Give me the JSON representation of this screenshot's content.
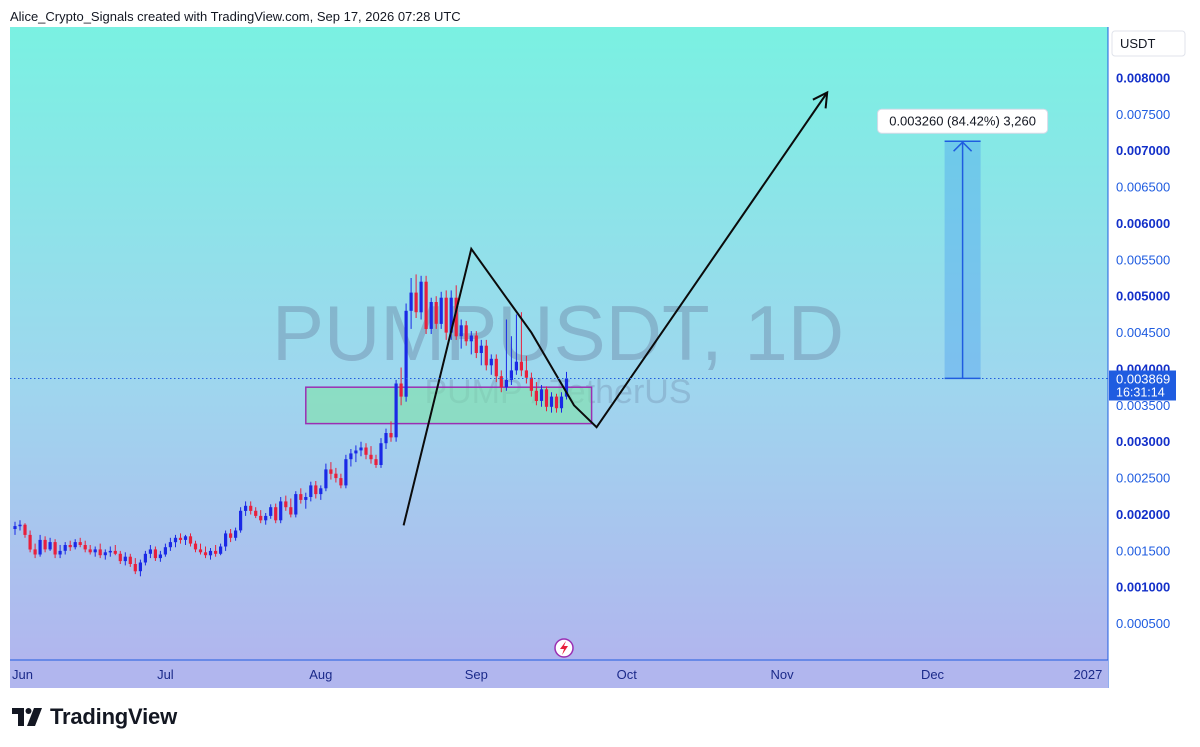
{
  "header": {
    "text": "Alice_Crypto_Signals created with TradingView.com, Sep 17, 2026 07:28 UTC"
  },
  "brand": {
    "name": "TradingView"
  },
  "colors": {
    "up": "#1a29e6",
    "down": "#e8203c",
    "accent": "#1f5ce0",
    "box_border": "#9b2fb3",
    "box_fill": "#7fe3a8"
  },
  "icons": {
    "logo": "tradingview-logo-icon",
    "flash": "lightning-icon"
  },
  "chart_data": {
    "type": "candlestick",
    "symbol_watermark": "PUMPUSDT, 1D",
    "symbol_subtitle": "PUMP / TetherUS",
    "currency": "USDT",
    "last_price": "0.003869",
    "countdown": "16:31:14",
    "measure_label": "0.003260 (84.42%) 3,260",
    "ylim": [
      0,
      0.0087
    ],
    "y_ticks": [
      {
        "label": "0.008000",
        "value": 0.008,
        "bold": true
      },
      {
        "label": "0.007500",
        "value": 0.0075,
        "bold": false
      },
      {
        "label": "0.007000",
        "value": 0.007,
        "bold": true
      },
      {
        "label": "0.006500",
        "value": 0.0065,
        "bold": false
      },
      {
        "label": "0.006000",
        "value": 0.006,
        "bold": true
      },
      {
        "label": "0.005500",
        "value": 0.0055,
        "bold": false
      },
      {
        "label": "0.005000",
        "value": 0.005,
        "bold": true
      },
      {
        "label": "0.004500",
        "value": 0.0045,
        "bold": false
      },
      {
        "label": "0.004000",
        "value": 0.004,
        "bold": true
      },
      {
        "label": "0.003500",
        "value": 0.0035,
        "bold": false
      },
      {
        "label": "0.003000",
        "value": 0.003,
        "bold": true
      },
      {
        "label": "0.002500",
        "value": 0.0025,
        "bold": false
      },
      {
        "label": "0.002000",
        "value": 0.002,
        "bold": true
      },
      {
        "label": "0.001500",
        "value": 0.0015,
        "bold": false
      },
      {
        "label": "0.001000",
        "value": 0.001,
        "bold": true
      },
      {
        "label": "0.000500",
        "value": 0.0005,
        "bold": false
      }
    ],
    "x_ticks": [
      {
        "label": "Jun",
        "day": 0
      },
      {
        "label": "Jul",
        "day": 30
      },
      {
        "label": "Aug",
        "day": 61
      },
      {
        "label": "Sep",
        "day": 92
      },
      {
        "label": "Oct",
        "day": 122
      },
      {
        "label": "Nov",
        "day": 153
      },
      {
        "label": "Dec",
        "day": 183
      },
      {
        "label": "2027",
        "day": 214
      }
    ],
    "x_range_days": [
      -1,
      218
    ],
    "candles": [
      {
        "d": 0,
        "o": 0.0018,
        "h": 0.0019,
        "l": 0.00172,
        "c": 0.00184
      },
      {
        "d": 1,
        "o": 0.00184,
        "h": 0.00192,
        "l": 0.00178,
        "c": 0.00186
      },
      {
        "d": 2,
        "o": 0.00186,
        "h": 0.00188,
        "l": 0.00168,
        "c": 0.00172
      },
      {
        "d": 3,
        "o": 0.00172,
        "h": 0.00178,
        "l": 0.00148,
        "c": 0.00152
      },
      {
        "d": 4,
        "o": 0.00152,
        "h": 0.0016,
        "l": 0.0014,
        "c": 0.00145
      },
      {
        "d": 5,
        "o": 0.00145,
        "h": 0.00172,
        "l": 0.00142,
        "c": 0.00165
      },
      {
        "d": 6,
        "o": 0.00165,
        "h": 0.0017,
        "l": 0.00148,
        "c": 0.00152
      },
      {
        "d": 7,
        "o": 0.00152,
        "h": 0.00168,
        "l": 0.0015,
        "c": 0.00162
      },
      {
        "d": 8,
        "o": 0.00162,
        "h": 0.00166,
        "l": 0.0014,
        "c": 0.00145
      },
      {
        "d": 9,
        "o": 0.00145,
        "h": 0.00158,
        "l": 0.0014,
        "c": 0.0015
      },
      {
        "d": 10,
        "o": 0.0015,
        "h": 0.00162,
        "l": 0.00145,
        "c": 0.00158
      },
      {
        "d": 11,
        "o": 0.00158,
        "h": 0.00164,
        "l": 0.0015,
        "c": 0.00155
      },
      {
        "d": 12,
        "o": 0.00155,
        "h": 0.00166,
        "l": 0.00152,
        "c": 0.00162
      },
      {
        "d": 13,
        "o": 0.00162,
        "h": 0.00168,
        "l": 0.00155,
        "c": 0.00158
      },
      {
        "d": 14,
        "o": 0.00158,
        "h": 0.00164,
        "l": 0.00148,
        "c": 0.00152
      },
      {
        "d": 15,
        "o": 0.00152,
        "h": 0.00158,
        "l": 0.00145,
        "c": 0.00148
      },
      {
        "d": 16,
        "o": 0.00148,
        "h": 0.00156,
        "l": 0.00142,
        "c": 0.00152
      },
      {
        "d": 17,
        "o": 0.00152,
        "h": 0.0016,
        "l": 0.0014,
        "c": 0.00144
      },
      {
        "d": 18,
        "o": 0.00144,
        "h": 0.00152,
        "l": 0.00138,
        "c": 0.00148
      },
      {
        "d": 19,
        "o": 0.00148,
        "h": 0.00156,
        "l": 0.00142,
        "c": 0.0015
      },
      {
        "d": 20,
        "o": 0.0015,
        "h": 0.00158,
        "l": 0.00144,
        "c": 0.00146
      },
      {
        "d": 21,
        "o": 0.00146,
        "h": 0.0015,
        "l": 0.00132,
        "c": 0.00136
      },
      {
        "d": 22,
        "o": 0.00136,
        "h": 0.00148,
        "l": 0.0013,
        "c": 0.00142
      },
      {
        "d": 23,
        "o": 0.00142,
        "h": 0.00146,
        "l": 0.00128,
        "c": 0.00132
      },
      {
        "d": 24,
        "o": 0.00132,
        "h": 0.0014,
        "l": 0.00118,
        "c": 0.00122
      },
      {
        "d": 25,
        "o": 0.00122,
        "h": 0.00138,
        "l": 0.00115,
        "c": 0.00134
      },
      {
        "d": 26,
        "o": 0.00134,
        "h": 0.0015,
        "l": 0.0013,
        "c": 0.00146
      },
      {
        "d": 27,
        "o": 0.00146,
        "h": 0.00158,
        "l": 0.0014,
        "c": 0.00152
      },
      {
        "d": 28,
        "o": 0.00152,
        "h": 0.00156,
        "l": 0.00136,
        "c": 0.0014
      },
      {
        "d": 29,
        "o": 0.0014,
        "h": 0.0015,
        "l": 0.00135,
        "c": 0.00145
      },
      {
        "d": 30,
        "o": 0.00145,
        "h": 0.0016,
        "l": 0.00142,
        "c": 0.00155
      },
      {
        "d": 31,
        "o": 0.00155,
        "h": 0.00168,
        "l": 0.0015,
        "c": 0.00162
      },
      {
        "d": 32,
        "o": 0.00162,
        "h": 0.00172,
        "l": 0.00155,
        "c": 0.00168
      },
      {
        "d": 33,
        "o": 0.00168,
        "h": 0.00174,
        "l": 0.0016,
        "c": 0.00165
      },
      {
        "d": 34,
        "o": 0.00165,
        "h": 0.00172,
        "l": 0.00158,
        "c": 0.0017
      },
      {
        "d": 35,
        "o": 0.0017,
        "h": 0.00174,
        "l": 0.00156,
        "c": 0.0016
      },
      {
        "d": 36,
        "o": 0.0016,
        "h": 0.00164,
        "l": 0.00148,
        "c": 0.00152
      },
      {
        "d": 37,
        "o": 0.00152,
        "h": 0.0016,
        "l": 0.00145,
        "c": 0.00148
      },
      {
        "d": 38,
        "o": 0.00148,
        "h": 0.00156,
        "l": 0.0014,
        "c": 0.00144
      },
      {
        "d": 39,
        "o": 0.00144,
        "h": 0.00154,
        "l": 0.00138,
        "c": 0.0015
      },
      {
        "d": 40,
        "o": 0.0015,
        "h": 0.00158,
        "l": 0.00142,
        "c": 0.00146
      },
      {
        "d": 41,
        "o": 0.00146,
        "h": 0.0016,
        "l": 0.00144,
        "c": 0.00156
      },
      {
        "d": 42,
        "o": 0.00156,
        "h": 0.00178,
        "l": 0.0015,
        "c": 0.00174
      },
      {
        "d": 43,
        "o": 0.00174,
        "h": 0.0018,
        "l": 0.00162,
        "c": 0.00168
      },
      {
        "d": 44,
        "o": 0.00168,
        "h": 0.00182,
        "l": 0.00164,
        "c": 0.00178
      },
      {
        "d": 45,
        "o": 0.00178,
        "h": 0.0021,
        "l": 0.00175,
        "c": 0.00205
      },
      {
        "d": 46,
        "o": 0.00205,
        "h": 0.00218,
        "l": 0.00198,
        "c": 0.00212
      },
      {
        "d": 47,
        "o": 0.00212,
        "h": 0.00218,
        "l": 0.002,
        "c": 0.00205
      },
      {
        "d": 48,
        "o": 0.00205,
        "h": 0.0021,
        "l": 0.00195,
        "c": 0.00198
      },
      {
        "d": 49,
        "o": 0.00198,
        "h": 0.00206,
        "l": 0.00188,
        "c": 0.00192
      },
      {
        "d": 50,
        "o": 0.00192,
        "h": 0.00202,
        "l": 0.00186,
        "c": 0.00198
      },
      {
        "d": 51,
        "o": 0.00198,
        "h": 0.00214,
        "l": 0.00194,
        "c": 0.0021
      },
      {
        "d": 52,
        "o": 0.0021,
        "h": 0.00215,
        "l": 0.00188,
        "c": 0.00192
      },
      {
        "d": 53,
        "o": 0.00192,
        "h": 0.00224,
        "l": 0.00188,
        "c": 0.00218
      },
      {
        "d": 54,
        "o": 0.00218,
        "h": 0.00226,
        "l": 0.00205,
        "c": 0.0021
      },
      {
        "d": 55,
        "o": 0.0021,
        "h": 0.00222,
        "l": 0.00196,
        "c": 0.002
      },
      {
        "d": 56,
        "o": 0.002,
        "h": 0.00232,
        "l": 0.00196,
        "c": 0.00228
      },
      {
        "d": 57,
        "o": 0.00228,
        "h": 0.00236,
        "l": 0.00215,
        "c": 0.0022
      },
      {
        "d": 58,
        "o": 0.0022,
        "h": 0.0023,
        "l": 0.00208,
        "c": 0.00224
      },
      {
        "d": 59,
        "o": 0.00224,
        "h": 0.00245,
        "l": 0.00218,
        "c": 0.0024
      },
      {
        "d": 60,
        "o": 0.0024,
        "h": 0.00246,
        "l": 0.00222,
        "c": 0.00228
      },
      {
        "d": 61,
        "o": 0.00228,
        "h": 0.0024,
        "l": 0.0022,
        "c": 0.00236
      },
      {
        "d": 62,
        "o": 0.00236,
        "h": 0.0027,
        "l": 0.00232,
        "c": 0.00262
      },
      {
        "d": 63,
        "o": 0.00262,
        "h": 0.00272,
        "l": 0.00248,
        "c": 0.00256
      },
      {
        "d": 64,
        "o": 0.00256,
        "h": 0.00264,
        "l": 0.00244,
        "c": 0.0025
      },
      {
        "d": 65,
        "o": 0.0025,
        "h": 0.00256,
        "l": 0.00236,
        "c": 0.0024
      },
      {
        "d": 66,
        "o": 0.0024,
        "h": 0.00282,
        "l": 0.00236,
        "c": 0.00276
      },
      {
        "d": 67,
        "o": 0.00276,
        "h": 0.0029,
        "l": 0.00266,
        "c": 0.00284
      },
      {
        "d": 68,
        "o": 0.00284,
        "h": 0.00295,
        "l": 0.00272,
        "c": 0.00288
      },
      {
        "d": 69,
        "o": 0.00288,
        "h": 0.003,
        "l": 0.0028,
        "c": 0.00292
      },
      {
        "d": 70,
        "o": 0.00292,
        "h": 0.00298,
        "l": 0.00276,
        "c": 0.00282
      },
      {
        "d": 71,
        "o": 0.00282,
        "h": 0.00294,
        "l": 0.0027,
        "c": 0.00276
      },
      {
        "d": 72,
        "o": 0.00276,
        "h": 0.00282,
        "l": 0.00264,
        "c": 0.00268
      },
      {
        "d": 73,
        "o": 0.00268,
        "h": 0.00305,
        "l": 0.00264,
        "c": 0.00298
      },
      {
        "d": 74,
        "o": 0.00298,
        "h": 0.00318,
        "l": 0.0029,
        "c": 0.00312
      },
      {
        "d": 75,
        "o": 0.00312,
        "h": 0.00328,
        "l": 0.003,
        "c": 0.00306
      },
      {
        "d": 76,
        "o": 0.00306,
        "h": 0.00385,
        "l": 0.003,
        "c": 0.0038
      },
      {
        "d": 77,
        "o": 0.0038,
        "h": 0.00402,
        "l": 0.0035,
        "c": 0.00362
      },
      {
        "d": 78,
        "o": 0.00362,
        "h": 0.0049,
        "l": 0.00355,
        "c": 0.0048
      },
      {
        "d": 79,
        "o": 0.0048,
        "h": 0.00525,
        "l": 0.00455,
        "c": 0.00505
      },
      {
        "d": 80,
        "o": 0.00505,
        "h": 0.0053,
        "l": 0.0047,
        "c": 0.00478
      },
      {
        "d": 81,
        "o": 0.00478,
        "h": 0.00528,
        "l": 0.00468,
        "c": 0.0052
      },
      {
        "d": 82,
        "o": 0.0052,
        "h": 0.00528,
        "l": 0.00448,
        "c": 0.00455
      },
      {
        "d": 83,
        "o": 0.00455,
        "h": 0.00498,
        "l": 0.00448,
        "c": 0.00492
      },
      {
        "d": 84,
        "o": 0.00492,
        "h": 0.005,
        "l": 0.00455,
        "c": 0.00462
      },
      {
        "d": 85,
        "o": 0.00462,
        "h": 0.00506,
        "l": 0.00455,
        "c": 0.00498
      },
      {
        "d": 86,
        "o": 0.00498,
        "h": 0.00508,
        "l": 0.0044,
        "c": 0.0045
      },
      {
        "d": 87,
        "o": 0.0045,
        "h": 0.00508,
        "l": 0.0044,
        "c": 0.00498
      },
      {
        "d": 88,
        "o": 0.00498,
        "h": 0.00515,
        "l": 0.0044,
        "c": 0.00445
      },
      {
        "d": 89,
        "o": 0.00445,
        "h": 0.00468,
        "l": 0.00428,
        "c": 0.0046
      },
      {
        "d": 90,
        "o": 0.0046,
        "h": 0.00466,
        "l": 0.00432,
        "c": 0.00438
      },
      {
        "d": 91,
        "o": 0.00438,
        "h": 0.00452,
        "l": 0.0042,
        "c": 0.00446
      },
      {
        "d": 92,
        "o": 0.00446,
        "h": 0.00452,
        "l": 0.00415,
        "c": 0.00422
      },
      {
        "d": 93,
        "o": 0.00422,
        "h": 0.0044,
        "l": 0.00405,
        "c": 0.00432
      },
      {
        "d": 94,
        "o": 0.00432,
        "h": 0.0044,
        "l": 0.00398,
        "c": 0.00405
      },
      {
        "d": 95,
        "o": 0.00405,
        "h": 0.0042,
        "l": 0.00392,
        "c": 0.00414
      },
      {
        "d": 96,
        "o": 0.00414,
        "h": 0.0042,
        "l": 0.00382,
        "c": 0.0039
      },
      {
        "d": 97,
        "o": 0.0039,
        "h": 0.00398,
        "l": 0.00368,
        "c": 0.00375
      },
      {
        "d": 98,
        "o": 0.00375,
        "h": 0.00468,
        "l": 0.0037,
        "c": 0.00385
      },
      {
        "d": 99,
        "o": 0.00385,
        "h": 0.00445,
        "l": 0.00378,
        "c": 0.00398
      },
      {
        "d": 100,
        "o": 0.00398,
        "h": 0.00475,
        "l": 0.00392,
        "c": 0.0041
      },
      {
        "d": 101,
        "o": 0.0041,
        "h": 0.00478,
        "l": 0.0039,
        "c": 0.00398
      },
      {
        "d": 102,
        "o": 0.00398,
        "h": 0.00418,
        "l": 0.0038,
        "c": 0.00388
      },
      {
        "d": 103,
        "o": 0.00388,
        "h": 0.00395,
        "l": 0.00362,
        "c": 0.0037
      },
      {
        "d": 104,
        "o": 0.0037,
        "h": 0.00382,
        "l": 0.0035,
        "c": 0.00356
      },
      {
        "d": 105,
        "o": 0.00356,
        "h": 0.00378,
        "l": 0.00348,
        "c": 0.00372
      },
      {
        "d": 106,
        "o": 0.00372,
        "h": 0.00376,
        "l": 0.00342,
        "c": 0.00348
      },
      {
        "d": 107,
        "o": 0.00348,
        "h": 0.00368,
        "l": 0.0034,
        "c": 0.00362
      },
      {
        "d": 108,
        "o": 0.00362,
        "h": 0.00366,
        "l": 0.0034,
        "c": 0.00346
      },
      {
        "d": 109,
        "o": 0.00346,
        "h": 0.00368,
        "l": 0.0034,
        "c": 0.00362
      },
      {
        "d": 110,
        "o": 0.00362,
        "h": 0.00396,
        "l": 0.00358,
        "c": 0.00387
      }
    ],
    "pattern_line": [
      {
        "day": 77.5,
        "value": 0.00185
      },
      {
        "day": 91,
        "value": 0.00565
      },
      {
        "day": 103,
        "value": 0.0045
      },
      {
        "day": 111.5,
        "value": 0.0035
      },
      {
        "day": 116,
        "value": 0.0032
      },
      {
        "day": 162,
        "value": 0.0078
      }
    ],
    "support_zone": {
      "day_start": 58,
      "day_end": 115,
      "low": 0.00325,
      "high": 0.00375
    },
    "measure": {
      "day": 189,
      "from": 0.00387,
      "to": 0.00713
    },
    "last_price_value": 0.003869
  }
}
